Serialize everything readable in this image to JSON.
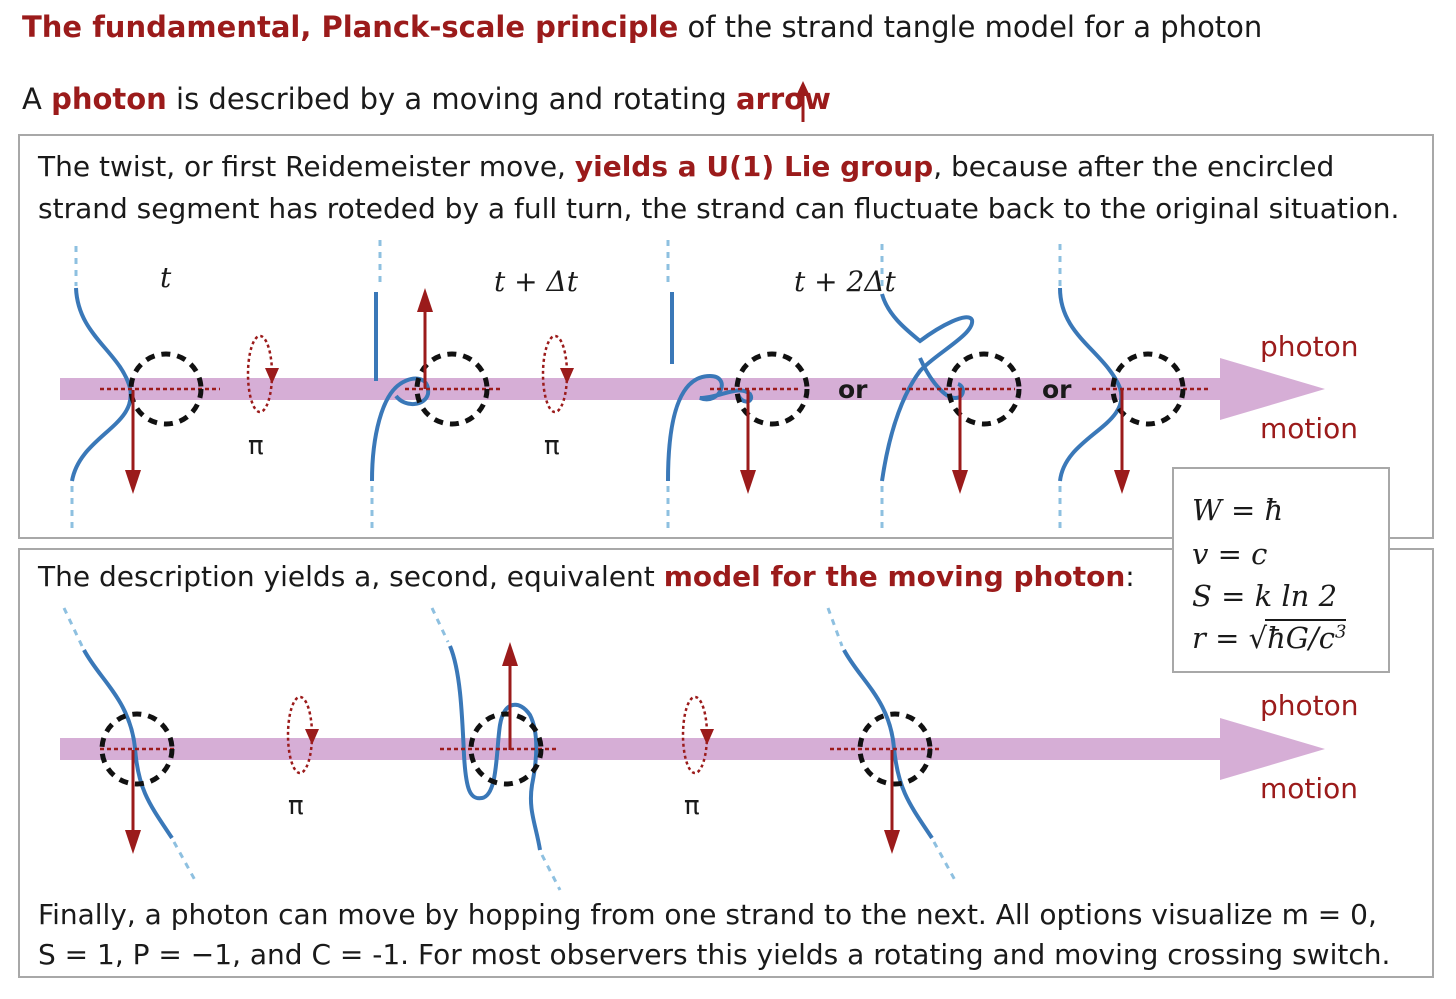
{
  "title": {
    "bold": "The fundamental, Planck-scale principle",
    "rest": " of the strand tangle model for a photon"
  },
  "intro": {
    "pre": "A ",
    "bold1": "photon",
    "mid": " is described by a moving and rotating ",
    "bold2": "arrow"
  },
  "panel1": {
    "line1_pre": "The twist, or first Reidemeister move, ",
    "line1_bold": "yields a U(1) Lie group",
    "line1_post": ", because after the encircled",
    "line2": "strand segment has roteded by a full turn, the strand can fluctuate back to the original situation.",
    "time_labels": [
      "t",
      "t + Δt",
      "t + 2Δt"
    ],
    "pi_label": "π",
    "or_label": "or",
    "motion_top": "photon",
    "motion_bottom": "motion"
  },
  "panel2": {
    "line1_pre": "The description yields a, second, equivalent ",
    "line1_bold": "model for the moving photon",
    "line1_post": ":",
    "pi_label": "π",
    "motion_top": "photon",
    "motion_bottom": "motion",
    "footer1": "Finally, a photon can move by hopping from one strand to the next. All options visualize m = 0,",
    "footer2": "S = 1, P = −1,  and C = -1. For most observers this yields a rotating and moving crossing switch."
  },
  "equations": {
    "W_lhs": "W = ħ",
    "v_lhs": "v = c",
    "S_lhs": "S = k ln 2",
    "r_lhs": "r = ",
    "r_root": "ħG/c",
    "r_exp": "3"
  },
  "colors": {
    "accent": "#9b1b1b",
    "strand": "#3a78b8",
    "strand_dashed": "#8ec0e0",
    "band": "#d6aed6",
    "circle": "#111111",
    "frame": "#a8a8a8"
  }
}
